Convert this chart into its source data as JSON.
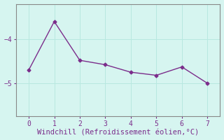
{
  "x": [
    0,
    1,
    2,
    3,
    4,
    5,
    6,
    7
  ],
  "y": [
    -4.7,
    -3.6,
    -4.48,
    -4.58,
    -4.75,
    -4.82,
    -4.63,
    -5.0
  ],
  "line_color": "#7b2d8b",
  "marker": "D",
  "marker_size": 2.5,
  "linewidth": 1.0,
  "xlabel": "Windchill (Refroidissement éolien,°C)",
  "xlabel_fontsize": 7.5,
  "xlabel_color": "#7b2d8b",
  "xlim": [
    -0.5,
    7.5
  ],
  "ylim": [
    -5.75,
    -3.2
  ],
  "yticks": [
    -5,
    -4
  ],
  "xticks": [
    0,
    1,
    2,
    3,
    4,
    5,
    6,
    7
  ],
  "background_color": "#d6f5f0",
  "grid_color": "#b8e8e0",
  "tick_color": "#7b2d8b",
  "tick_fontsize": 7,
  "spine_color": "#888888",
  "spine_linewidth": 0.8
}
